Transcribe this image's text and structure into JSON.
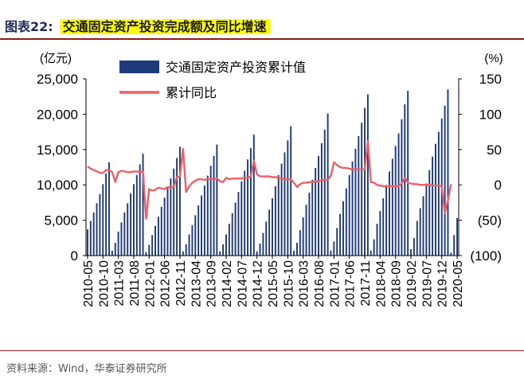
{
  "figure": {
    "label": "图表22:",
    "title": "交通固定资产投资完成额及同比增速",
    "source": "资料来源：Wind，华泰证券研究所"
  },
  "colors": {
    "bar": "#1f3a7a",
    "line": "#ee5f68",
    "rule": "#8c1d1d",
    "highlight": "#ffff00"
  },
  "chart_data": {
    "type": "bar+line",
    "left_axis": {
      "label": "(亿元)",
      "min": 0,
      "max": 25000,
      "ticks": [
        0,
        5000,
        10000,
        15000,
        20000,
        25000
      ],
      "tick_labels": [
        "0",
        "5,000",
        "10,000",
        "15,000",
        "20,000",
        "25,000"
      ]
    },
    "right_axis": {
      "label": "(%)",
      "min": -100,
      "max": 150,
      "ticks": [
        -100,
        -50,
        0,
        50,
        100,
        150
      ],
      "tick_labels": [
        "(100)",
        "(50)",
        "0",
        "50",
        "100",
        "150"
      ]
    },
    "x_tick_labels": [
      "2010-05",
      "2010-10",
      "2011-03",
      "2011-08",
      "2012-01",
      "2012-06",
      "2012-11",
      "2013-04",
      "2013-09",
      "2014-02",
      "2014-07",
      "2014-12",
      "2015-05",
      "2015-10",
      "2016-03",
      "2016-08",
      "2017-01",
      "2017-06",
      "2017-11",
      "2018-04",
      "2018-09",
      "2019-02",
      "2019-07",
      "2019-12",
      "2020-05"
    ],
    "series": [
      {
        "name": "交通固定资产投资累计值",
        "type": "bar",
        "axis": "left",
        "start": "2010-05",
        "values": [
          3700,
          4900,
          6100,
          7400,
          8700,
          10100,
          11600,
          13200,
          700,
          1800,
          3400,
          4700,
          6100,
          7400,
          8800,
          10100,
          11400,
          12900,
          14400,
          500,
          1500,
          2900,
          4200,
          5500,
          6900,
          8200,
          9600,
          10900,
          12300,
          13800,
          15400,
          600,
          1600,
          3000,
          4300,
          5700,
          7100,
          8500,
          9900,
          11300,
          12700,
          14100,
          15700,
          600,
          1600,
          3000,
          4500,
          6000,
          7500,
          9000,
          10500,
          12000,
          13600,
          15200,
          17100,
          600,
          1700,
          3200,
          4800,
          6500,
          8100,
          9800,
          11400,
          13000,
          14600,
          16300,
          18300,
          700,
          1800,
          3600,
          5400,
          7200,
          8900,
          10700,
          12400,
          14100,
          15900,
          17800,
          20100,
          700,
          2000,
          3900,
          5900,
          7700,
          9500,
          11400,
          13300,
          15100,
          16900,
          18800,
          20900,
          22800,
          700,
          2300,
          4500,
          6300,
          8100,
          10000,
          11900,
          13700,
          15500,
          17300,
          19300,
          21400,
          23300,
          900,
          2500,
          4900,
          6700,
          8400,
          10200,
          12100,
          14000,
          15800,
          17500,
          19400,
          21200,
          23500,
          400,
          2900,
          5300
        ]
      },
      {
        "name": "累计同比",
        "type": "line",
        "axis": "right",
        "start": "2010-05",
        "values": [
          26,
          23,
          21,
          19,
          17,
          17,
          21,
          21,
          18,
          4,
          18,
          20,
          19,
          18,
          18,
          19,
          19,
          18,
          19,
          -48,
          -6,
          -8,
          -7,
          -4,
          -5,
          -6,
          -3,
          -4,
          -3,
          11,
          12,
          51,
          -10,
          -2,
          3,
          6,
          8,
          8,
          7,
          8,
          8,
          8,
          9,
          5,
          4,
          10,
          8,
          9,
          9,
          9,
          9,
          10,
          10,
          12,
          34,
          15,
          12,
          12,
          12,
          12,
          11,
          11,
          10,
          9,
          8,
          8,
          8,
          3,
          -3,
          1,
          3,
          3,
          4,
          4,
          5,
          5,
          6,
          7,
          7,
          13,
          32,
          28,
          25,
          24,
          24,
          23,
          22,
          22,
          22,
          22,
          22,
          62,
          4,
          3,
          0,
          -1,
          -2,
          -2,
          -2,
          -2,
          -2,
          -2,
          2,
          10,
          3,
          2,
          1,
          1,
          0,
          0,
          0,
          0,
          -1,
          -1,
          -1,
          -2,
          -40,
          -22,
          1
        ]
      }
    ]
  }
}
